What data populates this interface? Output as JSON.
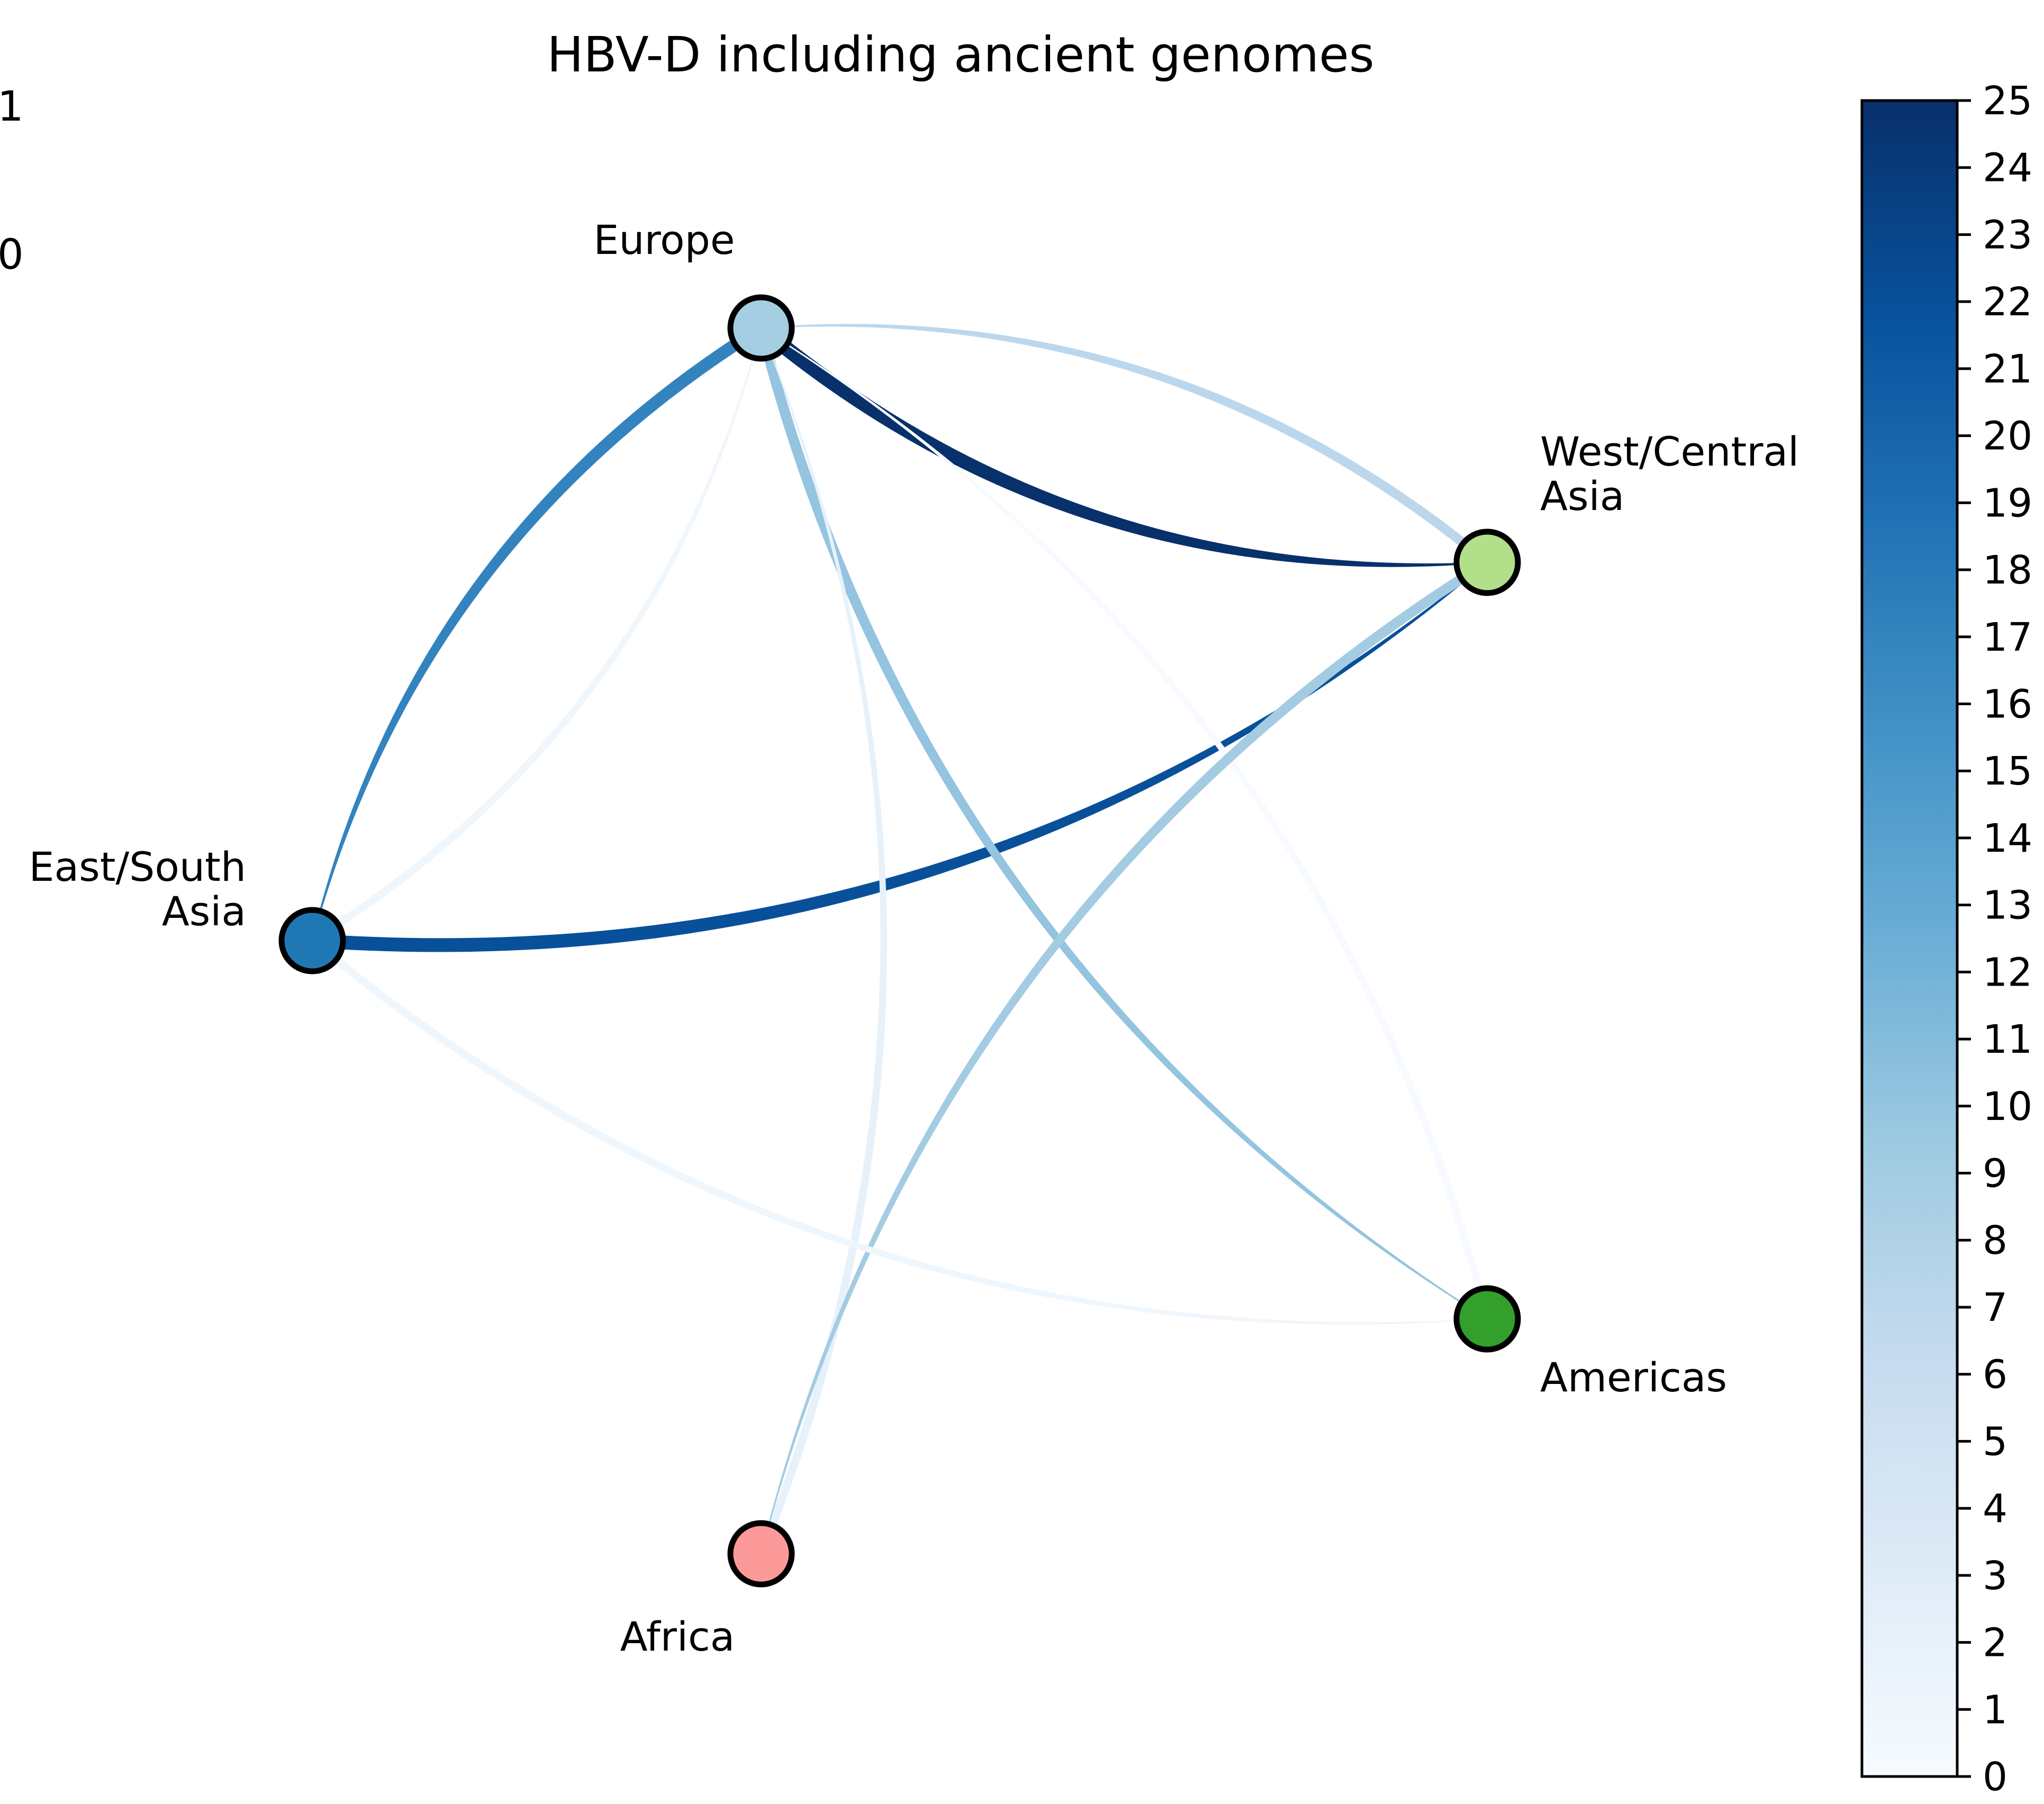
{
  "title": "HBV-D including ancient genomes",
  "legend_fragments": [
    "1",
    "0"
  ],
  "nodes": [
    {
      "id": "europe",
      "label": "Europe",
      "color": "#a6cee3"
    },
    {
      "id": "west_central_asia",
      "label": "West/Central Asia",
      "label_lines": [
        "West/Central",
        "Asia"
      ],
      "color": "#b2df8a"
    },
    {
      "id": "east_south_asia",
      "label": "East/South Asia",
      "label_lines": [
        "East/South",
        "Asia"
      ],
      "color": "#1f78b4"
    },
    {
      "id": "americas",
      "label": "Americas",
      "color": "#33a02c"
    },
    {
      "id": "africa",
      "label": "Africa",
      "color": "#fb9a99"
    }
  ],
  "edges": [
    {
      "from": "europe",
      "to": "west_central_asia",
      "value": 25
    },
    {
      "from": "west_central_asia",
      "to": "europe",
      "value": 7
    },
    {
      "from": "europe",
      "to": "east_south_asia",
      "value": 17
    },
    {
      "from": "east_south_asia",
      "to": "europe",
      "value": 1
    },
    {
      "from": "east_south_asia",
      "to": "west_central_asia",
      "value": 22
    },
    {
      "from": "europe",
      "to": "americas",
      "value": 10
    },
    {
      "from": "americas",
      "to": "europe",
      "value": 0
    },
    {
      "from": "africa",
      "to": "europe",
      "value": 2
    },
    {
      "from": "west_central_asia",
      "to": "africa",
      "value": 9
    },
    {
      "from": "east_south_asia",
      "to": "americas",
      "value": 1
    }
  ],
  "colorbar": {
    "min": 0,
    "max": 25,
    "ticks": [
      "0",
      "1",
      "2",
      "3",
      "4",
      "5",
      "6",
      "7",
      "8",
      "9",
      "10",
      "11",
      "12",
      "13",
      "14",
      "15",
      "16",
      "17",
      "18",
      "19",
      "20",
      "21",
      "22",
      "23",
      "24",
      "25"
    ],
    "colormap": "Blues"
  }
}
